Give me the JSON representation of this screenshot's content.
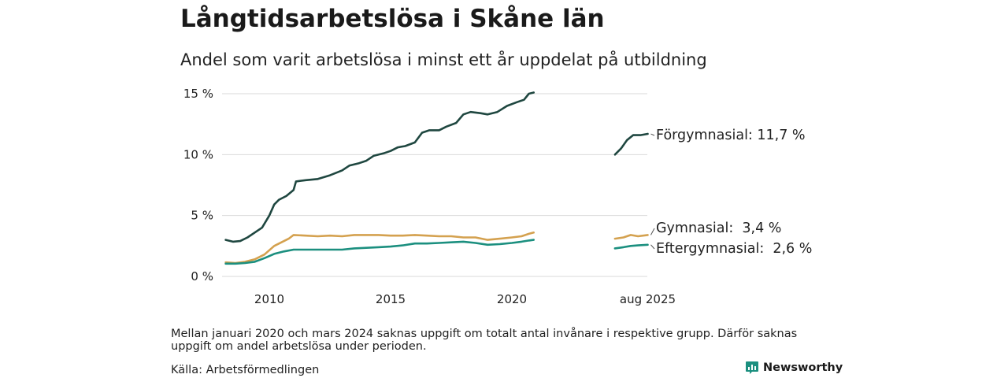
{
  "title": "Långtidsarbetslösa i Skåne län",
  "subtitle": "Andel som varit arbetslösa i minst ett år uppdelat på utbildning",
  "note": "Mellan januari 2020 och mars 2024 saknas uppgift om totalt antal invånare i respektive grupp. Därför saknas uppgift om andel arbetslösa under perioden.",
  "source": "Källa: Arbetsförmedlingen",
  "brand": "Newsworthy",
  "colors": {
    "forgymnasial": "#1f4740",
    "gymnasial": "#d4a14f",
    "eftergymnasial": "#1b8f7f",
    "brand": "#1b8f7f",
    "grid": "#d9d9d9"
  },
  "chart_data": {
    "type": "line",
    "title": "Långtidsarbetslösa i Skåne län",
    "subtitle": "Andel som varit arbetslösa i minst ett år uppdelat på utbildning",
    "ylim": [
      0,
      15
    ],
    "yticks": [
      0,
      5,
      10,
      15
    ],
    "ytick_labels": [
      "0 %",
      "5 %",
      "10 %",
      "15 %"
    ],
    "xticks": [
      2010,
      2015,
      2020,
      2025.6
    ],
    "xtick_labels": [
      "2010",
      "2015",
      "2020",
      "aug 2025"
    ],
    "grid": true,
    "legend": "direct labels at right",
    "series": [
      {
        "name": "Förgymnasial",
        "label": "Förgymnasial: 11,7 %",
        "color_key": "forgymnasial",
        "segments": [
          [
            [
              2008.2,
              3.0
            ],
            [
              2008.5,
              2.85
            ],
            [
              2008.8,
              2.9
            ],
            [
              2009.1,
              3.2
            ],
            [
              2009.4,
              3.6
            ],
            [
              2009.7,
              4.0
            ],
            [
              2010.0,
              5.0
            ],
            [
              2010.2,
              5.9
            ],
            [
              2010.4,
              6.3
            ],
            [
              2010.7,
              6.6
            ],
            [
              2011.0,
              7.1
            ],
            [
              2011.1,
              7.8
            ],
            [
              2011.5,
              7.9
            ],
            [
              2012.0,
              8.0
            ],
            [
              2012.5,
              8.3
            ],
            [
              2013.0,
              8.7
            ],
            [
              2013.3,
              9.1
            ],
            [
              2013.7,
              9.3
            ],
            [
              2014.0,
              9.5
            ],
            [
              2014.3,
              9.9
            ],
            [
              2014.7,
              10.1
            ],
            [
              2015.0,
              10.3
            ],
            [
              2015.3,
              10.6
            ],
            [
              2015.6,
              10.7
            ],
            [
              2016.0,
              11.0
            ],
            [
              2016.3,
              11.8
            ],
            [
              2016.6,
              12.0
            ],
            [
              2017.0,
              12.0
            ],
            [
              2017.3,
              12.3
            ],
            [
              2017.7,
              12.6
            ],
            [
              2018.0,
              13.3
            ],
            [
              2018.3,
              13.5
            ],
            [
              2018.7,
              13.4
            ],
            [
              2019.0,
              13.3
            ],
            [
              2019.4,
              13.5
            ],
            [
              2019.8,
              14.0
            ],
            [
              2020.2,
              14.3
            ],
            [
              2020.5,
              14.5
            ],
            [
              2020.7,
              15.0
            ],
            [
              2020.9,
              15.1
            ]
          ],
          [
            [
              2024.25,
              10.0
            ],
            [
              2024.5,
              10.5
            ],
            [
              2024.75,
              11.2
            ],
            [
              2025.0,
              11.6
            ],
            [
              2025.3,
              11.6
            ],
            [
              2025.6,
              11.7
            ]
          ]
        ]
      },
      {
        "name": "Gymnasial",
        "label": "Gymnasial:  3,4 %",
        "color_key": "gymnasial",
        "segments": [
          [
            [
              2008.2,
              1.15
            ],
            [
              2008.6,
              1.1
            ],
            [
              2009.0,
              1.2
            ],
            [
              2009.4,
              1.4
            ],
            [
              2009.8,
              1.8
            ],
            [
              2010.2,
              2.5
            ],
            [
              2010.5,
              2.8
            ],
            [
              2010.8,
              3.1
            ],
            [
              2011.0,
              3.4
            ],
            [
              2011.5,
              3.35
            ],
            [
              2012.0,
              3.3
            ],
            [
              2012.5,
              3.35
            ],
            [
              2013.0,
              3.3
            ],
            [
              2013.5,
              3.4
            ],
            [
              2014.0,
              3.4
            ],
            [
              2014.5,
              3.4
            ],
            [
              2015.0,
              3.35
            ],
            [
              2015.5,
              3.35
            ],
            [
              2016.0,
              3.4
            ],
            [
              2016.5,
              3.35
            ],
            [
              2017.0,
              3.3
            ],
            [
              2017.5,
              3.3
            ],
            [
              2018.0,
              3.2
            ],
            [
              2018.5,
              3.2
            ],
            [
              2019.0,
              3.0
            ],
            [
              2019.5,
              3.1
            ],
            [
              2020.0,
              3.2
            ],
            [
              2020.4,
              3.3
            ],
            [
              2020.7,
              3.5
            ],
            [
              2020.9,
              3.6
            ]
          ],
          [
            [
              2024.25,
              3.1
            ],
            [
              2024.6,
              3.2
            ],
            [
              2024.9,
              3.4
            ],
            [
              2025.2,
              3.3
            ],
            [
              2025.6,
              3.4
            ]
          ]
        ]
      },
      {
        "name": "Eftergymnasial",
        "label": "Eftergymnasial:  2,6 %",
        "color_key": "eftergymnasial",
        "segments": [
          [
            [
              2008.2,
              1.05
            ],
            [
              2008.6,
              1.05
            ],
            [
              2009.0,
              1.1
            ],
            [
              2009.4,
              1.2
            ],
            [
              2009.8,
              1.5
            ],
            [
              2010.2,
              1.85
            ],
            [
              2010.6,
              2.05
            ],
            [
              2011.0,
              2.2
            ],
            [
              2011.5,
              2.2
            ],
            [
              2012.0,
              2.2
            ],
            [
              2012.5,
              2.2
            ],
            [
              2013.0,
              2.2
            ],
            [
              2013.5,
              2.3
            ],
            [
              2014.0,
              2.35
            ],
            [
              2014.5,
              2.4
            ],
            [
              2015.0,
              2.45
            ],
            [
              2015.5,
              2.55
            ],
            [
              2016.0,
              2.7
            ],
            [
              2016.5,
              2.7
            ],
            [
              2017.0,
              2.75
            ],
            [
              2017.5,
              2.8
            ],
            [
              2018.0,
              2.85
            ],
            [
              2018.5,
              2.75
            ],
            [
              2019.0,
              2.6
            ],
            [
              2019.5,
              2.65
            ],
            [
              2020.0,
              2.75
            ],
            [
              2020.4,
              2.85
            ],
            [
              2020.7,
              2.95
            ],
            [
              2020.9,
              3.0
            ]
          ],
          [
            [
              2024.25,
              2.3
            ],
            [
              2024.6,
              2.4
            ],
            [
              2024.9,
              2.5
            ],
            [
              2025.2,
              2.55
            ],
            [
              2025.6,
              2.6
            ]
          ]
        ]
      }
    ]
  }
}
